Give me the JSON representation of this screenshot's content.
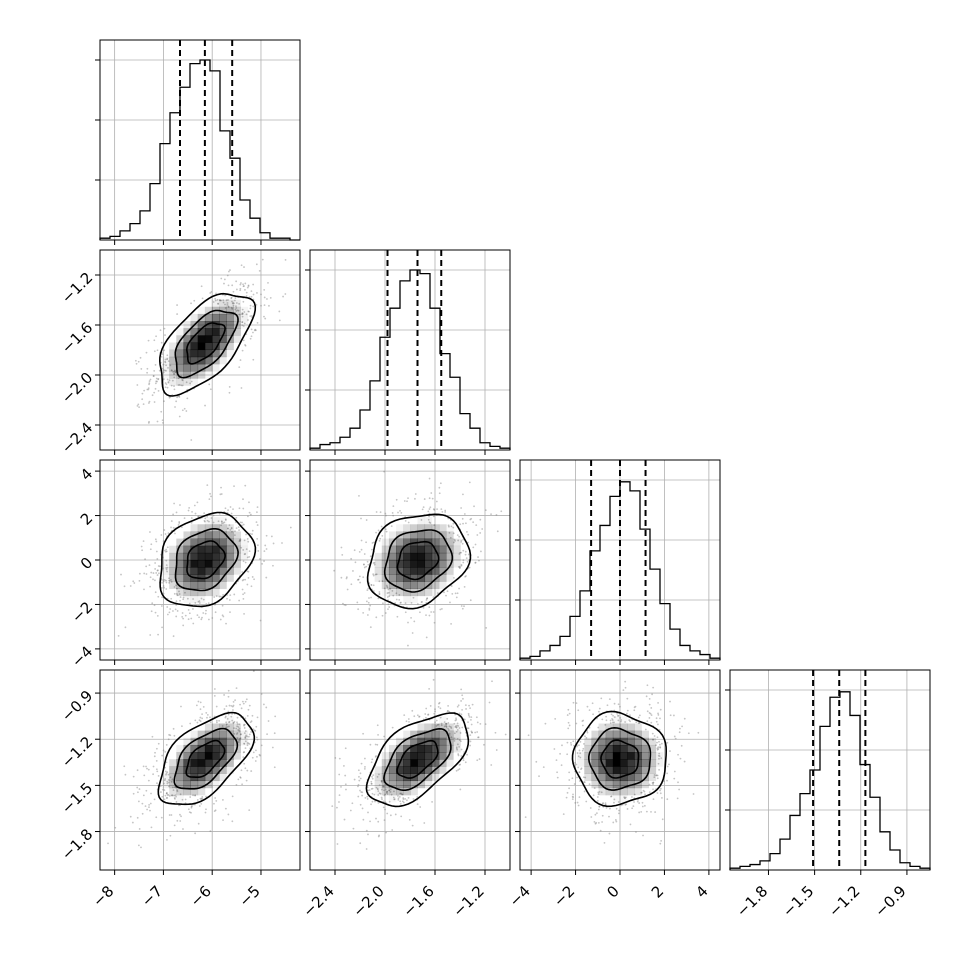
{
  "chart_data": {
    "type": "corner",
    "title": "",
    "parameters": [
      {
        "name": "",
        "range": [
          -8.3,
          -4.2
        ],
        "ticks": [
          -8,
          -7,
          -6,
          -5
        ],
        "tick_labels": [
          "−8",
          "−7",
          "−6",
          "−5"
        ],
        "quantiles": [
          -6.66,
          -6.15,
          -5.59
        ],
        "bin_centers": [
          -8.12,
          -7.91,
          -7.71,
          -7.5,
          -7.3,
          -7.09,
          -6.89,
          -6.68,
          -6.48,
          -6.27,
          -6.07,
          -5.86,
          -5.66,
          -5.45,
          -5.25,
          -5.04,
          -4.84,
          -4.63,
          -4.43,
          -4.22
        ],
        "hist_counts": [
          0.01,
          0.02,
          0.05,
          0.09,
          0.16,
          0.31,
          0.53,
          0.7,
          0.84,
          0.97,
          0.99,
          0.93,
          0.6,
          0.45,
          0.22,
          0.12,
          0.04,
          0.01,
          0.01,
          0.0
        ]
      },
      {
        "name": "",
        "range": [
          -2.6,
          -1.0
        ],
        "ticks": [
          -2.4,
          -2.0,
          -1.6,
          -1.2
        ],
        "tick_labels": [
          "−2.4",
          "−2.0",
          "−1.6",
          "−1.2"
        ],
        "quantiles": [
          -1.98,
          -1.74,
          -1.55
        ],
        "bin_centers": [
          -2.56,
          -2.48,
          -2.4,
          -2.32,
          -2.24,
          -2.16,
          -2.08,
          -2.0,
          -1.92,
          -1.84,
          -1.76,
          -1.68,
          -1.6,
          -1.52,
          -1.44,
          -1.36,
          -1.28,
          -1.2,
          -1.12,
          -1.04
        ],
        "hist_counts": [
          0.01,
          0.03,
          0.04,
          0.07,
          0.12,
          0.22,
          0.38,
          0.62,
          0.78,
          0.93,
          0.99,
          0.97,
          0.78,
          0.53,
          0.4,
          0.2,
          0.12,
          0.04,
          0.02,
          0.01
        ]
      },
      {
        "name": "",
        "range": [
          -4.5,
          4.5
        ],
        "ticks": [
          -4,
          -2,
          0,
          2,
          4
        ],
        "tick_labels": [
          "−4",
          "−2",
          "0",
          "2",
          "4"
        ],
        "quantiles": [
          -1.3,
          0.0,
          1.15
        ],
        "bin_centers": [
          -4.27,
          -3.82,
          -3.38,
          -2.93,
          -2.48,
          -2.03,
          -1.58,
          -1.13,
          -0.68,
          -0.23,
          0.22,
          0.67,
          1.12,
          1.57,
          2.02,
          2.47,
          2.92,
          3.37,
          3.82,
          4.27
        ],
        "hist_counts": [
          0.01,
          0.02,
          0.05,
          0.08,
          0.13,
          0.24,
          0.38,
          0.6,
          0.74,
          0.9,
          0.98,
          0.93,
          0.72,
          0.5,
          0.31,
          0.17,
          0.08,
          0.05,
          0.03,
          0.01
        ]
      },
      {
        "name": "",
        "range": [
          -2.05,
          -0.75
        ],
        "ticks": [
          -1.8,
          -1.5,
          -1.2,
          -0.9
        ],
        "tick_labels": [
          "−1.8",
          "−1.5",
          "−1.2",
          "−0.9"
        ],
        "quantiles": [
          -1.51,
          -1.34,
          -1.17
        ],
        "bin_centers": [
          -2.02,
          -1.95,
          -1.89,
          -1.82,
          -1.76,
          -1.69,
          -1.63,
          -1.56,
          -1.5,
          -1.43,
          -1.37,
          -1.3,
          -1.24,
          -1.17,
          -1.11,
          -1.04,
          -0.98,
          -0.91,
          -0.85,
          -0.78
        ],
        "hist_counts": [
          0.01,
          0.02,
          0.03,
          0.05,
          0.09,
          0.17,
          0.3,
          0.42,
          0.55,
          0.79,
          0.95,
          0.98,
          0.85,
          0.58,
          0.4,
          0.21,
          0.11,
          0.04,
          0.02,
          0.01
        ]
      }
    ],
    "pairs": [
      {
        "x": 0,
        "y": 1,
        "center": [
          -6.15,
          -1.74
        ],
        "sd": [
          0.55,
          0.23
        ],
        "corr": 0.6,
        "contours": [
          {
            "level": 0.5,
            "r": [
              0.7,
              0.7
            ]
          },
          {
            "level": 1.0,
            "r": [
              1.15,
              1.15
            ]
          },
          {
            "level": 1.5,
            "r": [
              1.75,
              1.75
            ]
          }
        ]
      },
      {
        "x": 0,
        "y": 2,
        "center": [
          -6.15,
          0.0
        ],
        "sd": [
          0.55,
          1.2
        ],
        "corr": 0.25,
        "contours": [
          {
            "level": 0.5,
            "r": [
              0.7,
              0.7
            ]
          },
          {
            "level": 1.0,
            "r": [
              1.15,
              1.15
            ]
          },
          {
            "level": 1.5,
            "r": [
              1.75,
              1.75
            ]
          }
        ]
      },
      {
        "x": 1,
        "y": 2,
        "center": [
          -1.74,
          0.0
        ],
        "sd": [
          0.23,
          1.2
        ],
        "corr": 0.2,
        "contours": [
          {
            "level": 0.5,
            "r": [
              0.7,
              0.7
            ]
          },
          {
            "level": 1.0,
            "r": [
              1.15,
              1.15
            ]
          },
          {
            "level": 1.5,
            "r": [
              1.75,
              1.75
            ]
          }
        ]
      },
      {
        "x": 0,
        "y": 3,
        "center": [
          -6.15,
          -1.33
        ],
        "sd": [
          0.55,
          0.17
        ],
        "corr": 0.55,
        "contours": [
          {
            "level": 0.5,
            "r": [
              0.7,
              0.7
            ]
          },
          {
            "level": 1.0,
            "r": [
              1.15,
              1.15
            ]
          },
          {
            "level": 1.5,
            "r": [
              1.75,
              1.75
            ]
          }
        ]
      },
      {
        "x": 1,
        "y": 3,
        "center": [
          -1.74,
          -1.33
        ],
        "sd": [
          0.23,
          0.17
        ],
        "corr": 0.55,
        "contours": [
          {
            "level": 0.5,
            "r": [
              0.7,
              0.7
            ]
          },
          {
            "level": 1.0,
            "r": [
              1.15,
              1.15
            ]
          },
          {
            "level": 1.5,
            "r": [
              1.75,
              1.75
            ]
          }
        ]
      },
      {
        "x": 2,
        "y": 3,
        "center": [
          0.0,
          -1.33
        ],
        "sd": [
          1.2,
          0.17
        ],
        "corr": 0.0,
        "contours": [
          {
            "level": 0.5,
            "r": [
              0.7,
              0.7
            ]
          },
          {
            "level": 1.0,
            "r": [
              1.15,
              1.15
            ]
          },
          {
            "level": 1.5,
            "r": [
              1.75,
              1.75
            ]
          }
        ]
      }
    ],
    "grid": true,
    "colors": {
      "line": "#000000",
      "grid": "#b0b0b0",
      "scatter": "#7f7f7f",
      "density": "#000000"
    }
  }
}
